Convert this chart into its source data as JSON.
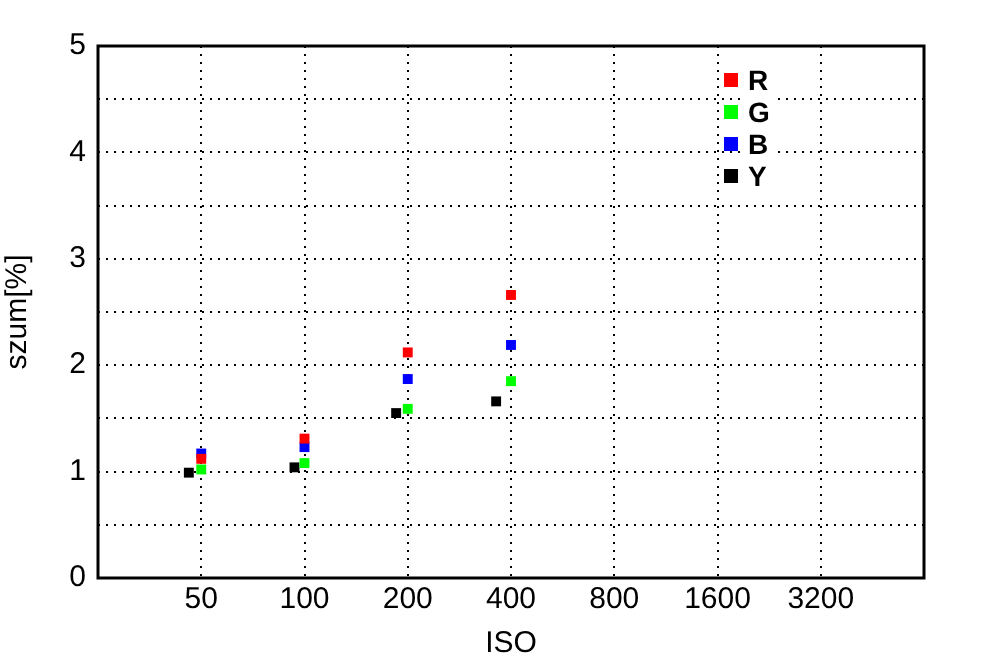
{
  "chart_data": {
    "type": "scatter",
    "xlabel": "ISO",
    "ylabel": "szum[%]",
    "log": "x",
    "xlim": [
      25,
      6400
    ],
    "xticks": [
      50,
      100,
      200,
      400,
      800,
      1600,
      3200
    ],
    "ylim": [
      0,
      5
    ],
    "yticks": [
      0,
      {
        "value": 0.5,
        "label": null
      },
      1,
      {
        "value": 1.5,
        "label": null
      },
      2,
      {
        "value": 2.5,
        "label": null
      },
      3,
      {
        "value": 3.5,
        "label": null
      },
      4,
      {
        "value": 4.5,
        "label": null
      },
      5
    ],
    "grid": true,
    "legend": "top right",
    "marker": "square",
    "series": [
      {
        "name": "R",
        "color": "#ff0000",
        "x": [
          50,
          100,
          200,
          400
        ],
        "values": [
          1.12,
          1.31,
          2.12,
          2.66
        ]
      },
      {
        "name": "G",
        "color": "#00ff00",
        "x": [
          50,
          100,
          200,
          400
        ],
        "values": [
          1.02,
          1.08,
          1.59,
          1.85
        ]
      },
      {
        "name": "B",
        "color": "#0000ff",
        "x": [
          50,
          100,
          200,
          400
        ],
        "values": [
          1.17,
          1.23,
          1.87,
          2.19
        ]
      },
      {
        "name": "Y",
        "color": "#000000",
        "x": [
          46,
          93.5,
          185,
          362
        ],
        "values": [
          0.99,
          1.04,
          1.55,
          1.66
        ]
      }
    ]
  }
}
